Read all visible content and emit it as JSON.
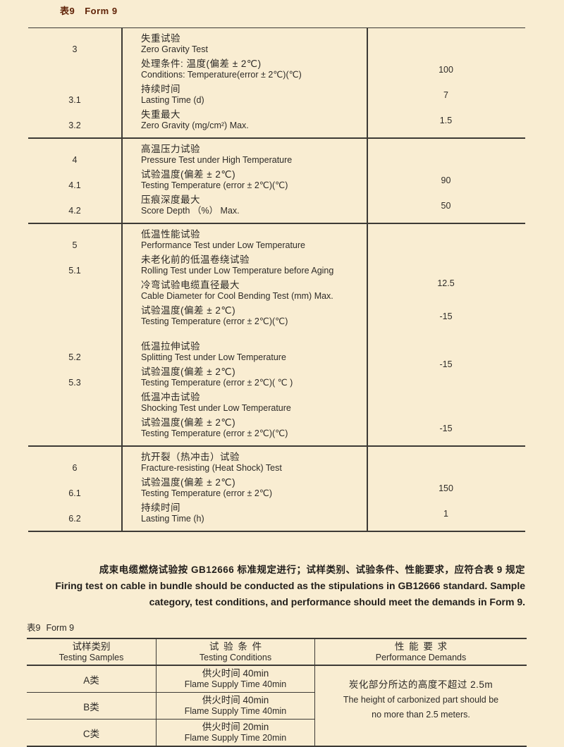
{
  "page": {
    "background": "#f9edd2",
    "accent_title_color": "#5f2207",
    "line_color": "#3d3a35"
  },
  "form9_top": {
    "label_zh": "表9",
    "label_en": "Form 9"
  },
  "table1": {
    "sections": [
      {
        "items": [
          {
            "num": "3",
            "cn": "失重试验",
            "en": "Zero Gravity Test",
            "val": ""
          },
          {
            "num": "",
            "cn": "处理条件:  温度(偏差 ± 2℃)",
            "en": "Conditions: Temperature(error ± 2℃)(℃)",
            "val": "100"
          },
          {
            "num": "3.1",
            "cn": "持续时间",
            "en": "Lasting Time (d)",
            "val": "7"
          },
          {
            "num": "3.2",
            "cn": "失重最大",
            "en": "Zero Gravity (mg/cm²) Max.",
            "val": "1.5"
          }
        ]
      },
      {
        "items": [
          {
            "num": "4",
            "cn": "高温压力试验",
            "en": "Pressure Test under High Temperature",
            "val": ""
          },
          {
            "num": "4.1",
            "cn": "试验温度(偏差 ± 2℃)",
            "en": "Testing Temperature (error ± 2℃)(℃)",
            "val": "90"
          },
          {
            "num": "4.2",
            "cn": "压痕深度最大",
            "en": "Score Depth （%） Max.",
            "val": "50"
          }
        ]
      },
      {
        "items": [
          {
            "num": "5",
            "cn": "低温性能试验",
            "en": "Performance Test under Low Temperature",
            "val": ""
          },
          {
            "num": "5.1",
            "cn": "未老化前的低温卷绕试验",
            "en": "Rolling Test under Low Temperature before Aging",
            "val": ""
          },
          {
            "num": "",
            "cn": "冷弯试验电缆直径最大",
            "en": "Cable Diameter for Cool Bending Test (mm) Max.",
            "val": "12.5"
          },
          {
            "num": "",
            "cn": "试验温度(偏差 ± 2℃)",
            "en": "Testing Temperature (error ± 2℃)(℃)",
            "val": "-15"
          },
          {
            "num": "5.2",
            "cn": "低温拉伸试验",
            "en": "Splitting Test under Low Temperature",
            "val": "-15"
          },
          {
            "num": "5.3",
            "cn": "试验温度(偏差 ± 2℃)",
            "en": "Testing Temperature (error ± 2℃)( ℃ )",
            "val": ""
          },
          {
            "num": "",
            "cn": "低温冲击试验",
            "en": "Shocking Test under Low Temperature",
            "val": ""
          },
          {
            "num": "",
            "cn": "试验温度(偏差 ± 2℃)",
            "en": "Testing Temperature (error ± 2℃)(℃)",
            "val": "-15"
          }
        ]
      },
      {
        "items": [
          {
            "num": "6",
            "cn": "抗开裂（热冲击）试验",
            "en": "Fracture-resisting (Heat Shock) Test",
            "val": ""
          },
          {
            "num": "6.1",
            "cn": "试验温度(偏差 ± 2℃)",
            "en": "Testing Temperature (error ± 2℃)",
            "val": "150"
          },
          {
            "num": "6.2",
            "cn": "持续时间",
            "en": "Lasting Time (h)",
            "val": "1"
          }
        ]
      }
    ]
  },
  "note": {
    "cn": "成束电缆燃烧试验按 GB12666 标准规定进行；试样类别、试验条件、性能要求，应符合表 9 规定",
    "en_line1": "Firing test on cable in bundle should be conducted as the stipulations in GB12666 standard. Sample",
    "en_line2": "category, test conditions, and performance should meet the demands in Form 9."
  },
  "form9_bottom": {
    "label_zh": "表9",
    "label_en": "Form 9"
  },
  "table2": {
    "headers": {
      "col1_cn": "试样类别",
      "col1_en": "Testing Samples",
      "col2_cn": "试验条件",
      "col2_en": "Testing Conditions",
      "col3_cn": "性能要求",
      "col3_en": "Performance Demands"
    },
    "rows": [
      {
        "sample": "A类",
        "cond_cn": "供火时间 40min",
        "cond_en": "Flame Supply Time 40min"
      },
      {
        "sample": "B类",
        "cond_cn": "供火时间 40min",
        "cond_en": "Flame Supply Time 40min"
      },
      {
        "sample": "C类",
        "cond_cn": "供火时间 20min",
        "cond_en": "Flame Supply Time 20min"
      }
    ],
    "demand": {
      "cn": "炭化部分所达的高度不超过 2.5m",
      "en1": "The height of carbonized part should be",
      "en2": "no more than 2.5 meters."
    }
  }
}
